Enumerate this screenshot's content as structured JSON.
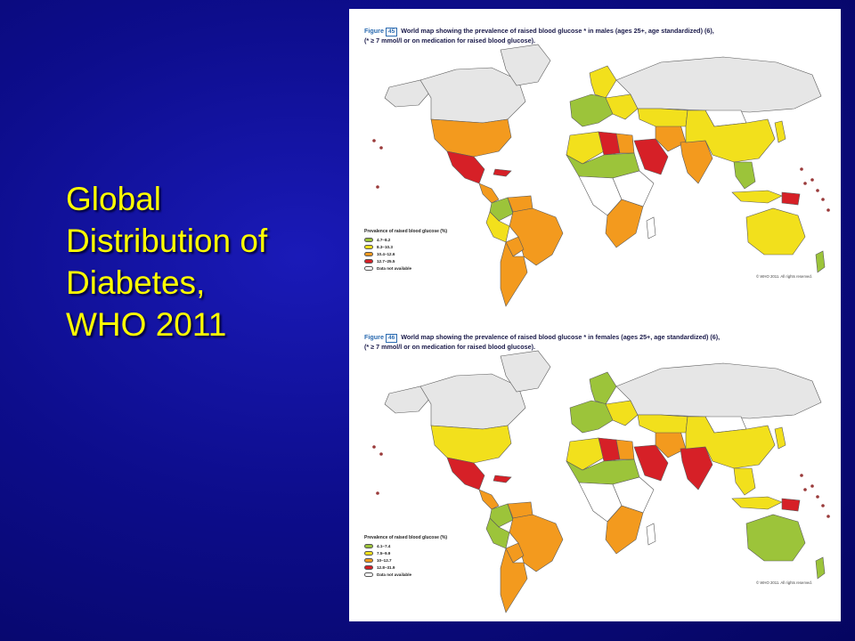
{
  "slide": {
    "title_lines": [
      "Global",
      "Distribution of",
      "Diabetes,",
      "WHO 2011"
    ]
  },
  "figures": [
    {
      "figure_label": "Figure",
      "figure_number": "45",
      "caption_line1": "World map showing the prevalence of raised blood glucose * in males (ages 25+, age standardized) (6),",
      "caption_line2": "(* ≥ 7 mmol/l or on medication for raised blood glucose).",
      "legend_title": "Prevalence of raised blood glucose (%)",
      "legend": [
        {
          "label": "4.7–8.2",
          "color": "#9cc43a"
        },
        {
          "label": "8.3–10.3",
          "color": "#f2e01c"
        },
        {
          "label": "10.4–12.6",
          "color": "#f39a1e"
        },
        {
          "label": "12.7–25.5",
          "color": "#d62027"
        },
        {
          "label": "Data not available",
          "color": "#ffffff"
        }
      ],
      "copyright": "© WHO 2011. All rights reserved."
    },
    {
      "figure_label": "Figure",
      "figure_number": "46",
      "caption_line1": "World map showing the prevalence of raised blood glucose * in females (ages 25+, age standardized) (6),",
      "caption_line2": "(* ≥ 7 mmol/l or on medication for raised blood glucose).",
      "legend_title": "Prevalence of raised blood glucose (%)",
      "legend": [
        {
          "label": "4.1–7.4",
          "color": "#9cc43a"
        },
        {
          "label": "7.5–9.9",
          "color": "#f2e01c"
        },
        {
          "label": "10–12.7",
          "color": "#f39a1e"
        },
        {
          "label": "12.8–31.9",
          "color": "#d62027"
        },
        {
          "label": "Data not available",
          "color": "#ffffff"
        }
      ],
      "copyright": "© WHO 2011. All rights reserved."
    }
  ],
  "regions_male": {
    "north_america": "#ffffff",
    "alaska": "#e6e6e6",
    "canada": "#e6e6e6",
    "greenland": "#e6e6e6",
    "usa": "#f39a1e",
    "mexico": "#d62027",
    "central_america": "#f39a1e",
    "caribbean": "#d62027",
    "colombia": "#9cc43a",
    "venezuela": "#f39a1e",
    "brazil": "#f39a1e",
    "peru": "#f2e01c",
    "bolivia": "#f39a1e",
    "southern_cone": "#f39a1e",
    "scandinavia": "#f2e01c",
    "western_europe": "#9cc43a",
    "eastern_europe": "#f2e01c",
    "russia": "#e6e6e6",
    "north_africa_west": "#f2e01c",
    "libya": "#d62027",
    "egypt": "#f39a1e",
    "sahel": "#9cc43a",
    "central_africa": "#ffffff",
    "east_africa": "#ffffff",
    "southern_africa": "#f39a1e",
    "arabia": "#d62027",
    "iran": "#f39a1e",
    "central_asia": "#f2e01c",
    "south_asia": "#f39a1e",
    "china": "#f2e01c",
    "mongolia": "#ffffff",
    "se_asia": "#9cc43a",
    "indonesia": "#f2e01c",
    "papua": "#d62027",
    "australia": "#f2e01c",
    "japan": "#f2e01c",
    "new_zealand": "#9cc43a",
    "madagascar": "#ffffff"
  },
  "regions_female": {
    "north_america": "#ffffff",
    "alaska": "#e6e6e6",
    "canada": "#e6e6e6",
    "greenland": "#e6e6e6",
    "usa": "#f2e01c",
    "mexico": "#d62027",
    "central_america": "#f39a1e",
    "caribbean": "#d62027",
    "colombia": "#9cc43a",
    "venezuela": "#f39a1e",
    "brazil": "#f39a1e",
    "peru": "#9cc43a",
    "bolivia": "#f39a1e",
    "southern_cone": "#f39a1e",
    "scandinavia": "#9cc43a",
    "western_europe": "#9cc43a",
    "eastern_europe": "#f2e01c",
    "russia": "#e6e6e6",
    "north_africa_west": "#f2e01c",
    "libya": "#d62027",
    "egypt": "#f39a1e",
    "sahel": "#9cc43a",
    "central_africa": "#ffffff",
    "east_africa": "#ffffff",
    "southern_africa": "#f39a1e",
    "arabia": "#d62027",
    "iran": "#f39a1e",
    "central_asia": "#f2e01c",
    "south_asia": "#d62027",
    "china": "#f2e01c",
    "mongolia": "#ffffff",
    "se_asia": "#f2e01c",
    "indonesia": "#f2e01c",
    "papua": "#d62027",
    "australia": "#9cc43a",
    "japan": "#f2e01c",
    "new_zealand": "#9cc43a",
    "madagascar": "#ffffff"
  }
}
